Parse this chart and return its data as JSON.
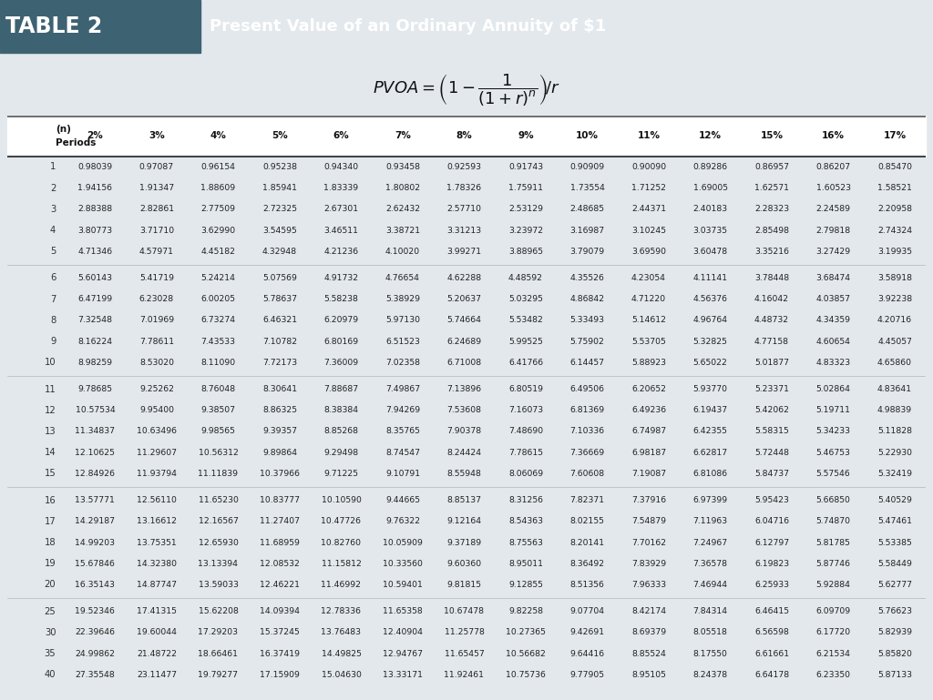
{
  "title_left": "TABLE 2",
  "title_right": "Present Value of an Ordinary Annuity of $1",
  "header_dark_bg": "#3d6272",
  "header_light_bg": "#6b8f9e",
  "table_bg": "#e2e8ec",
  "col_headers": [
    "(n)\nPeriods",
    "2%",
    "3%",
    "4%",
    "5%",
    "6%",
    "7%",
    "8%",
    "9%",
    "10%",
    "11%",
    "12%",
    "15%",
    "16%",
    "17%"
  ],
  "rates": [
    "2%",
    "3%",
    "4%",
    "5%",
    "6%",
    "7%",
    "8%",
    "9%",
    "10%",
    "11%",
    "12%",
    "15%",
    "16%",
    "17%"
  ],
  "periods": [
    1,
    2,
    3,
    4,
    5,
    6,
    7,
    8,
    9,
    10,
    11,
    12,
    13,
    14,
    15,
    16,
    17,
    18,
    19,
    20,
    25,
    30,
    35,
    40
  ],
  "data": {
    "2%": [
      0.98039,
      1.94156,
      2.88388,
      3.80773,
      4.71346,
      5.60143,
      6.47199,
      7.32548,
      8.16224,
      8.98259,
      9.78685,
      10.57534,
      11.34837,
      12.10625,
      12.84926,
      13.57771,
      14.29187,
      14.99203,
      15.67846,
      16.35143,
      19.52346,
      22.39646,
      24.99862,
      27.35548
    ],
    "3%": [
      0.97087,
      1.91347,
      2.82861,
      3.7171,
      4.57971,
      5.41719,
      6.23028,
      7.01969,
      7.78611,
      8.5302,
      9.25262,
      9.954,
      10.63496,
      11.29607,
      11.93794,
      12.5611,
      13.16612,
      13.75351,
      14.3238,
      14.87747,
      17.41315,
      19.60044,
      21.48722,
      23.11477
    ],
    "4%": [
      0.96154,
      1.88609,
      2.77509,
      3.6299,
      4.45182,
      5.24214,
      6.00205,
      6.73274,
      7.43533,
      8.1109,
      8.76048,
      9.38507,
      9.98565,
      10.56312,
      11.11839,
      11.6523,
      12.16567,
      12.6593,
      13.13394,
      13.59033,
      15.62208,
      17.29203,
      18.66461,
      19.79277
    ],
    "5%": [
      0.95238,
      1.85941,
      2.72325,
      3.54595,
      4.32948,
      5.07569,
      5.78637,
      6.46321,
      7.10782,
      7.72173,
      8.30641,
      8.86325,
      9.39357,
      9.89864,
      10.37966,
      10.83777,
      11.27407,
      11.68959,
      12.08532,
      12.46221,
      14.09394,
      15.37245,
      16.37419,
      17.15909
    ],
    "6%": [
      0.9434,
      1.83339,
      2.67301,
      3.46511,
      4.21236,
      4.91732,
      5.58238,
      6.20979,
      6.80169,
      7.36009,
      7.88687,
      8.38384,
      8.85268,
      9.29498,
      9.71225,
      10.1059,
      10.47726,
      10.8276,
      11.15812,
      11.46992,
      12.78336,
      13.76483,
      14.49825,
      15.0463
    ],
    "7%": [
      0.93458,
      1.80802,
      2.62432,
      3.38721,
      4.1002,
      4.76654,
      5.38929,
      5.9713,
      6.51523,
      7.02358,
      7.49867,
      7.94269,
      8.35765,
      8.74547,
      9.10791,
      9.44665,
      9.76322,
      10.05909,
      10.3356,
      10.59401,
      11.65358,
      12.40904,
      12.94767,
      13.33171
    ],
    "8%": [
      0.92593,
      1.78326,
      2.5771,
      3.31213,
      3.99271,
      4.62288,
      5.20637,
      5.74664,
      6.24689,
      6.71008,
      7.13896,
      7.53608,
      7.90378,
      8.24424,
      8.55948,
      8.85137,
      9.12164,
      9.37189,
      9.6036,
      9.81815,
      10.67478,
      11.25778,
      11.65457,
      11.92461
    ],
    "9%": [
      0.91743,
      1.75911,
      2.53129,
      3.23972,
      3.88965,
      4.48592,
      5.03295,
      5.53482,
      5.99525,
      6.41766,
      6.80519,
      7.16073,
      7.4869,
      7.78615,
      8.06069,
      8.31256,
      8.54363,
      8.75563,
      8.95011,
      9.12855,
      9.82258,
      10.27365,
      10.56682,
      10.75736
    ],
    "10%": [
      0.90909,
      1.73554,
      2.48685,
      3.16987,
      3.79079,
      4.35526,
      4.86842,
      5.33493,
      5.75902,
      6.14457,
      6.49506,
      6.81369,
      7.10336,
      7.36669,
      7.60608,
      7.82371,
      8.02155,
      8.20141,
      8.36492,
      8.51356,
      9.07704,
      9.42691,
      9.64416,
      9.77905
    ],
    "11%": [
      0.9009,
      1.71252,
      2.44371,
      3.10245,
      3.6959,
      4.23054,
      4.7122,
      5.14612,
      5.53705,
      5.88923,
      6.20652,
      6.49236,
      6.74987,
      6.98187,
      7.19087,
      7.37916,
      7.54879,
      7.70162,
      7.83929,
      7.96333,
      8.42174,
      8.69379,
      8.85524,
      8.95105
    ],
    "12%": [
      0.89286,
      1.69005,
      2.40183,
      3.03735,
      3.60478,
      4.11141,
      4.56376,
      4.96764,
      5.32825,
      5.65022,
      5.9377,
      6.19437,
      6.42355,
      6.62817,
      6.81086,
      6.97399,
      7.11963,
      7.24967,
      7.36578,
      7.46944,
      7.84314,
      8.05518,
      8.1755,
      8.24378
    ],
    "15%": [
      0.86957,
      1.62571,
      2.28323,
      2.85498,
      3.35216,
      3.78448,
      4.16042,
      4.48732,
      4.77158,
      5.01877,
      5.23371,
      5.42062,
      5.58315,
      5.72448,
      5.84737,
      5.95423,
      6.04716,
      6.12797,
      6.19823,
      6.25933,
      6.46415,
      6.56598,
      6.61661,
      6.64178
    ],
    "16%": [
      0.86207,
      1.60523,
      2.24589,
      2.79818,
      3.27429,
      3.68474,
      4.03857,
      4.34359,
      4.60654,
      4.83323,
      5.02864,
      5.19711,
      5.34233,
      5.46753,
      5.57546,
      5.6685,
      5.7487,
      5.81785,
      5.87746,
      5.92884,
      6.09709,
      6.1772,
      6.21534,
      6.2335
    ],
    "17%": [
      0.8547,
      1.58521,
      2.20958,
      2.74324,
      3.19935,
      3.58918,
      3.92238,
      4.20716,
      4.45057,
      4.6586,
      4.83641,
      4.98839,
      5.11828,
      5.2293,
      5.32419,
      5.40529,
      5.47461,
      5.53385,
      5.58449,
      5.62777,
      5.76623,
      5.82939,
      5.8582,
      5.87133
    ]
  },
  "row_groups": [
    [
      1,
      2,
      3,
      4,
      5
    ],
    [
      6,
      7,
      8,
      9,
      10
    ],
    [
      11,
      12,
      13,
      14,
      15
    ],
    [
      16,
      17,
      18,
      19,
      20
    ],
    [
      25,
      30,
      35,
      40
    ]
  ]
}
